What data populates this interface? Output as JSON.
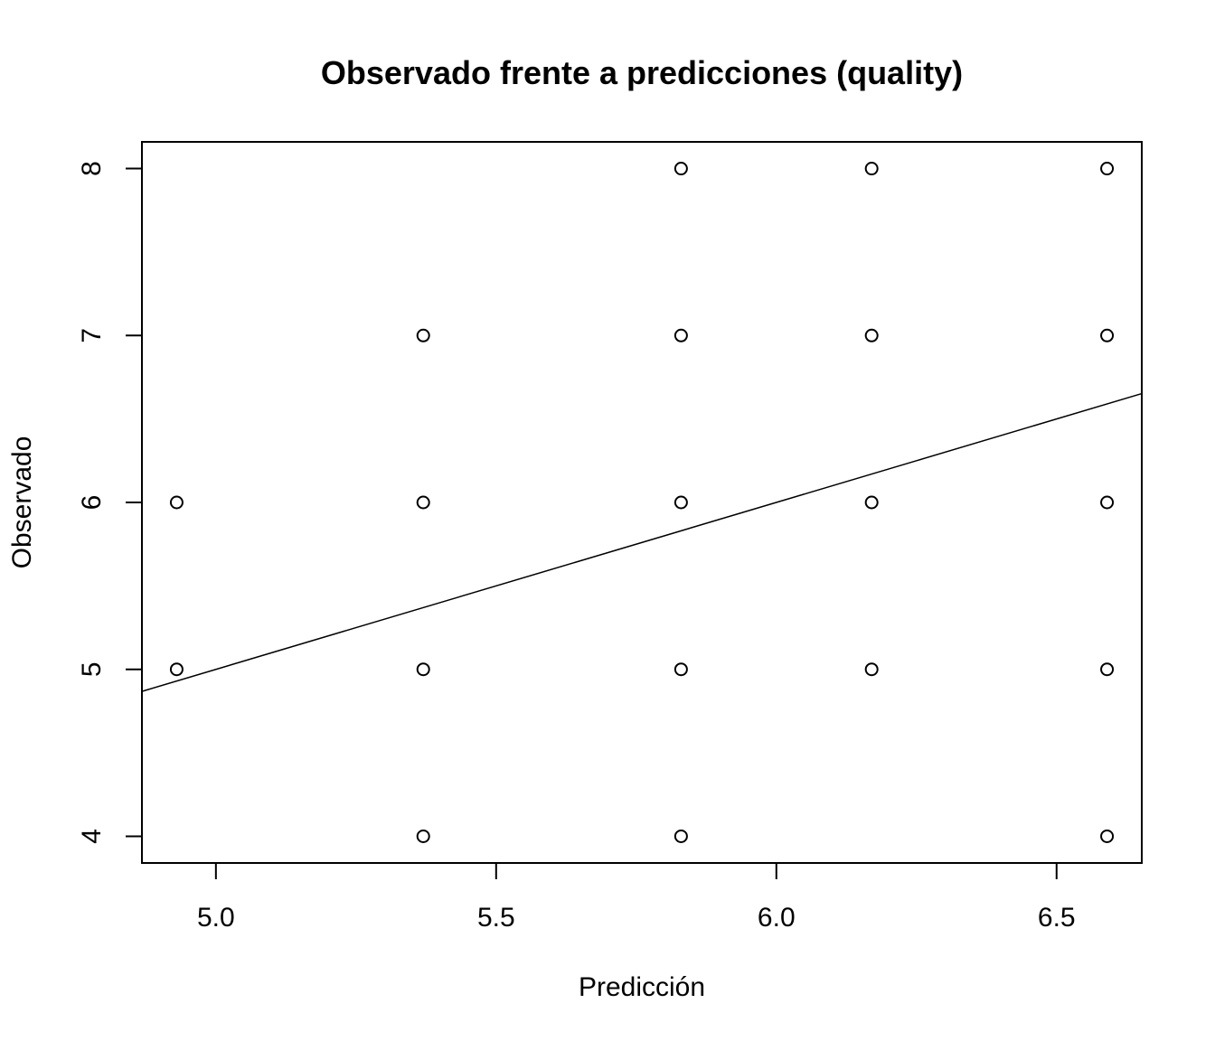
{
  "chart_data": {
    "type": "scatter",
    "title": "Observado frente a predicciones (quality)",
    "xlabel": "Predicción",
    "ylabel": "Observado",
    "xlim": [
      4.868,
      6.652
    ],
    "ylim": [
      3.84,
      8.16
    ],
    "x_ticks": [
      5.0,
      5.5,
      6.0,
      6.5
    ],
    "x_tick_labels": [
      "5.0",
      "5.5",
      "6.0",
      "6.5"
    ],
    "y_ticks": [
      4,
      5,
      6,
      7,
      8
    ],
    "y_tick_labels": [
      "4",
      "5",
      "6",
      "7",
      "8"
    ],
    "grid": false,
    "reference_line": {
      "intercept": 0,
      "slope": 1
    },
    "points": [
      {
        "x": 4.93,
        "y": 6
      },
      {
        "x": 4.93,
        "y": 5
      },
      {
        "x": 5.37,
        "y": 7
      },
      {
        "x": 5.37,
        "y": 6
      },
      {
        "x": 5.37,
        "y": 5
      },
      {
        "x": 5.37,
        "y": 4
      },
      {
        "x": 5.83,
        "y": 8
      },
      {
        "x": 5.83,
        "y": 7
      },
      {
        "x": 5.83,
        "y": 6
      },
      {
        "x": 5.83,
        "y": 5
      },
      {
        "x": 5.83,
        "y": 4
      },
      {
        "x": 6.17,
        "y": 8
      },
      {
        "x": 6.17,
        "y": 7
      },
      {
        "x": 6.17,
        "y": 6
      },
      {
        "x": 6.17,
        "y": 5
      },
      {
        "x": 6.59,
        "y": 8
      },
      {
        "x": 6.59,
        "y": 7
      },
      {
        "x": 6.59,
        "y": 6
      },
      {
        "x": 6.59,
        "y": 5
      },
      {
        "x": 6.59,
        "y": 4
      }
    ]
  }
}
